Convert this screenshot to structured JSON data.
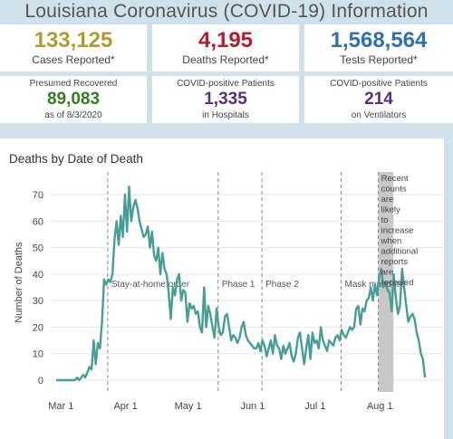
{
  "header": {
    "title": "Louisiana Coronavirus (COVID-19) Information"
  },
  "colors": {
    "cases": "#b39a2e",
    "deaths": "#b3202c",
    "tests": "#2e6fb5",
    "recovered": "#2f7d1e",
    "hospital": "#5b2d7a",
    "line": "#479e95"
  },
  "stats": {
    "cases": {
      "value": "133,125",
      "label": "Cases Reported*"
    },
    "deaths": {
      "value": "4,195",
      "label": "Deaths Reported*"
    },
    "tests": {
      "value": "1,568,564",
      "label": "Tests Reported*"
    },
    "recovered": {
      "label": "Presumed Recovered",
      "value": "89,083",
      "note": "as of 8/3/2020"
    },
    "hospitals": {
      "label": "COVID-positive Patients",
      "value": "1,335",
      "note": "in Hospitals"
    },
    "ventilators": {
      "label": "COVID-positive Patients",
      "value": "214",
      "note": "on Ventilators"
    }
  },
  "chart_data": {
    "type": "line",
    "title": "Deaths by Date of Death",
    "ylabel": "Number of Deaths",
    "xlabel": "",
    "ylim": [
      0,
      75
    ],
    "yticks": [
      0,
      10,
      20,
      30,
      40,
      50,
      60,
      70
    ],
    "x_ticks": [
      "Mar 1",
      "Apr 1",
      "May 1",
      "Jun 1",
      "Jul 1",
      "Aug 1"
    ],
    "x_start_date": "2020-02-29",
    "annotations": [
      {
        "date": "2020-03-23",
        "label": "Stay-at-home order"
      },
      {
        "date": "2020-05-15",
        "label": "Phase 1"
      },
      {
        "date": "2020-06-05",
        "label": "Phase 2"
      },
      {
        "date": "2020-07-13",
        "label": "Mask mandate"
      }
    ],
    "shaded_note": {
      "start_date": "2020-07-30",
      "end_date": "2020-08-08",
      "label": "Recent counts are likely to increase when additional reports are received"
    },
    "grid": true,
    "values": [
      0,
      0,
      0,
      0,
      0,
      0,
      0,
      0,
      0,
      0,
      1,
      0,
      1,
      2,
      1,
      3,
      5,
      4,
      15,
      6,
      14,
      12,
      22,
      38,
      36,
      38,
      37,
      40,
      53,
      60,
      51,
      62,
      54,
      70,
      56,
      73,
      60,
      65,
      68,
      65,
      60,
      57,
      54,
      55,
      58,
      50,
      56,
      47,
      45,
      50,
      40,
      48,
      42,
      40,
      33,
      23,
      35,
      32,
      38,
      40,
      30,
      34,
      33,
      22,
      29,
      27,
      28,
      25,
      26,
      20,
      18,
      35,
      20,
      28,
      25,
      20,
      16,
      27,
      20,
      17,
      18,
      24,
      25,
      20,
      15,
      17,
      16,
      14,
      16,
      20,
      22,
      17,
      15,
      14,
      13,
      12,
      12,
      14,
      11,
      15,
      13,
      9,
      12,
      15,
      10,
      17,
      13,
      12,
      8,
      13,
      10,
      12,
      14,
      9,
      7,
      10,
      16,
      18,
      12,
      6,
      12,
      17,
      8,
      18,
      14,
      15,
      12,
      20,
      15,
      13,
      11,
      15,
      14,
      13,
      16,
      17,
      15,
      19,
      17,
      16,
      18,
      20,
      19,
      20,
      27,
      28,
      21,
      27,
      26,
      30,
      31,
      35,
      30,
      36,
      32,
      39,
      42,
      35,
      37,
      34,
      33,
      26,
      40,
      31,
      25,
      28,
      42,
      35,
      28,
      22,
      24,
      25,
      23,
      18,
      15,
      10,
      8,
      1
    ],
    "series": [
      {
        "name": "Deaths",
        "color": "#479e95"
      }
    ]
  }
}
